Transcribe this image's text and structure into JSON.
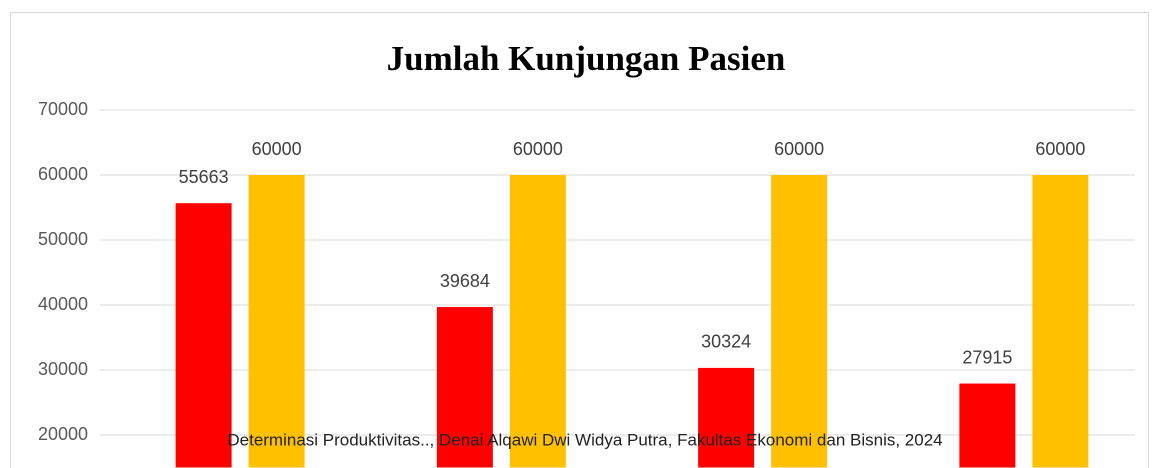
{
  "chart_data": {
    "type": "bar",
    "title": "Jumlah Kunjungan Pasien",
    "categories": [
      null,
      null,
      null,
      null
    ],
    "series": [
      {
        "color": "#ff0000",
        "values": [
          55663,
          39684,
          30324,
          27915
        ]
      },
      {
        "color": "#ffc000",
        "values": [
          60000,
          60000,
          60000,
          60000
        ]
      }
    ],
    "ylim": [
      15000,
      70000
    ],
    "yticks": [
      20000,
      30000,
      40000,
      50000,
      60000,
      70000
    ],
    "grid": true
  },
  "footer": "Determinasi Produktivitas.., Denai Alqawi Dwi Widya Putra, Fakultas Ekonomi dan Bisnis, 2024"
}
